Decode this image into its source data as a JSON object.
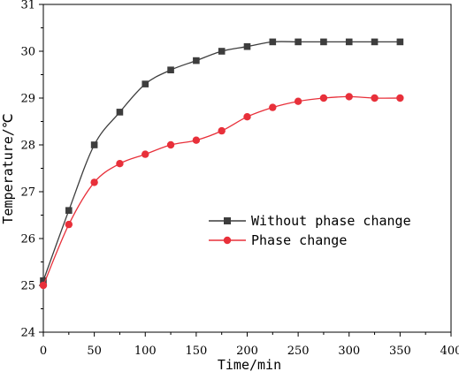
{
  "chart_data": {
    "type": "line",
    "xlabel": "Time/min",
    "ylabel": "Temperature/℃",
    "xlim": [
      0,
      400
    ],
    "ylim": [
      24,
      31
    ],
    "xticks": [
      0,
      50,
      100,
      150,
      200,
      250,
      300,
      350,
      400
    ],
    "yticks": [
      24,
      25,
      26,
      27,
      28,
      29,
      30,
      31
    ],
    "grid": false,
    "legend_position": "center-right",
    "series": [
      {
        "name": "Without phase change",
        "color": "#3d3d3d",
        "marker": "square",
        "x": [
          0,
          25,
          50,
          75,
          100,
          125,
          150,
          175,
          200,
          225,
          250,
          275,
          300,
          325,
          350
        ],
        "y": [
          25.1,
          26.6,
          28.0,
          28.7,
          29.3,
          29.6,
          29.8,
          30.0,
          30.1,
          30.2,
          30.2,
          30.2,
          30.2,
          30.2,
          30.2
        ]
      },
      {
        "name": "Phase change",
        "color": "#e8303a",
        "marker": "circle",
        "x": [
          0,
          25,
          50,
          75,
          100,
          125,
          150,
          175,
          200,
          225,
          250,
          275,
          300,
          325,
          350
        ],
        "y": [
          25.0,
          26.3,
          27.2,
          27.6,
          27.8,
          28.0,
          28.1,
          28.3,
          28.6,
          28.8,
          28.93,
          29.0,
          29.03,
          29.0,
          29.0
        ]
      }
    ]
  }
}
